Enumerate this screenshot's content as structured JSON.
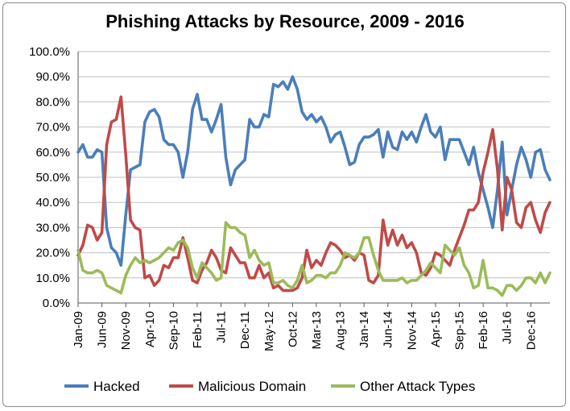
{
  "chart_data": {
    "type": "line",
    "title": "Phishing Attacks by Resource, 2009 - 2016",
    "xlabel": "",
    "ylabel": "",
    "ylim": [
      0,
      100
    ],
    "y_ticks": [
      "0.0%",
      "10.0%",
      "20.0%",
      "30.0%",
      "40.0%",
      "50.0%",
      "60.0%",
      "70.0%",
      "80.0%",
      "90.0%",
      "100.0%"
    ],
    "x_tick_labels": [
      "Jan-09",
      "Jun-09",
      "Nov-09",
      "Apr-10",
      "Sep-10",
      "Feb-11",
      "Jul-11",
      "Dec-11",
      "May-12",
      "Oct-12",
      "Mar-13",
      "Aug-13",
      "Jan-14",
      "Jun-14",
      "Nov-14",
      "Apr-15",
      "Sep-15",
      "Feb-16",
      "Jul-16",
      "Dec-16"
    ],
    "x_start": "Jan-09",
    "x_end": "Dec-16",
    "legend_position": "bottom",
    "gridlines": true,
    "series": [
      {
        "name": "Hacked",
        "color": "#4a7ebb",
        "values": [
          60,
          63,
          58,
          58,
          61,
          60,
          30,
          22,
          20,
          15,
          35,
          53,
          54,
          55,
          72,
          76,
          77,
          74,
          65,
          63,
          63,
          60,
          50,
          60,
          77,
          83,
          73,
          73,
          68,
          73,
          79,
          58,
          47,
          53,
          55,
          57,
          73,
          70,
          70,
          75,
          74,
          87,
          86,
          88,
          85,
          90,
          85,
          76,
          73,
          75,
          72,
          74,
          70,
          64,
          67,
          68,
          62,
          55,
          56,
          63,
          66,
          66,
          67,
          69,
          58,
          68,
          62,
          61,
          68,
          65,
          68,
          64,
          70,
          75,
          68,
          66,
          70,
          57,
          65,
          65,
          65,
          60,
          55,
          62,
          52,
          45,
          38,
          30,
          45,
          64,
          35,
          45,
          55,
          62,
          57,
          50,
          60,
          61,
          53,
          49
        ]
      },
      {
        "name": "Malicious Domain",
        "color": "#be4b48",
        "values": [
          19,
          23,
          31,
          30,
          25,
          28,
          63,
          72,
          73,
          82,
          59,
          33,
          30,
          29,
          10,
          11,
          7,
          9,
          15,
          14,
          18,
          18,
          26,
          18,
          9,
          8,
          13,
          16,
          21,
          18,
          13,
          12,
          22,
          19,
          16,
          16,
          10,
          10,
          15,
          10,
          12,
          6,
          7,
          5,
          5,
          5,
          6,
          10,
          21,
          14,
          17,
          15,
          20,
          24,
          23,
          21,
          18,
          19,
          17,
          20,
          19,
          9,
          8,
          11,
          33,
          23,
          29,
          23,
          27,
          22,
          24,
          20,
          12,
          11,
          14,
          20,
          19,
          17,
          15,
          21,
          26,
          31,
          37,
          37,
          40,
          52,
          60,
          69,
          53,
          29,
          50,
          45,
          32,
          30,
          38,
          40,
          33,
          28,
          36,
          40
        ]
      },
      {
        "name": "Other Attack Types",
        "color": "#9bbb59",
        "values": [
          21,
          13,
          12,
          12,
          13,
          12,
          7,
          6,
          5,
          4,
          11,
          15,
          18,
          16,
          17,
          16,
          17,
          18,
          20,
          22,
          21,
          24,
          25,
          22,
          14,
          10,
          16,
          14,
          12,
          9,
          10,
          32,
          30,
          30,
          28,
          27,
          18,
          21,
          17,
          15,
          16,
          8,
          8,
          9,
          7,
          6,
          9,
          15,
          8,
          9,
          11,
          11,
          10,
          12,
          12,
          15,
          20,
          19,
          18,
          20,
          26,
          26,
          19,
          13,
          9,
          9,
          9,
          9,
          10,
          8,
          9,
          9,
          11,
          13,
          16,
          14,
          12,
          23,
          21,
          19,
          22,
          15,
          12,
          6,
          7,
          17,
          6,
          6,
          5,
          3,
          7,
          7,
          5,
          7,
          10,
          10,
          8,
          12,
          8,
          12
        ]
      }
    ]
  }
}
